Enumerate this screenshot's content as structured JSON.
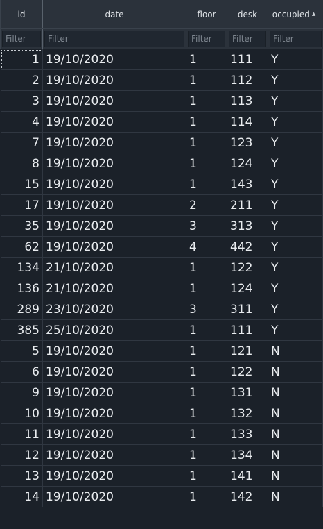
{
  "columns": [
    {
      "key": "id",
      "label": "id",
      "filter_placeholder": "Filter",
      "align": "num"
    },
    {
      "key": "date",
      "label": "date",
      "filter_placeholder": "Filter",
      "align": "txt"
    },
    {
      "key": "floor",
      "label": "floor",
      "filter_placeholder": "Filter",
      "align": "txt"
    },
    {
      "key": "desk",
      "label": "desk",
      "filter_placeholder": "Filter",
      "align": "txt"
    },
    {
      "key": "occupied",
      "label": "occupied",
      "filter_placeholder": "Filter",
      "align": "txt",
      "sort_indicator": "▲1"
    }
  ],
  "rows": [
    {
      "id": "1",
      "date": "19/10/2020",
      "floor": "1",
      "desk": "111",
      "occupied": "Y"
    },
    {
      "id": "2",
      "date": "19/10/2020",
      "floor": "1",
      "desk": "112",
      "occupied": "Y"
    },
    {
      "id": "3",
      "date": "19/10/2020",
      "floor": "1",
      "desk": "113",
      "occupied": "Y"
    },
    {
      "id": "4",
      "date": "19/10/2020",
      "floor": "1",
      "desk": "114",
      "occupied": "Y"
    },
    {
      "id": "7",
      "date": "19/10/2020",
      "floor": "1",
      "desk": "123",
      "occupied": "Y"
    },
    {
      "id": "8",
      "date": "19/10/2020",
      "floor": "1",
      "desk": "124",
      "occupied": "Y"
    },
    {
      "id": "15",
      "date": "19/10/2020",
      "floor": "1",
      "desk": "143",
      "occupied": "Y"
    },
    {
      "id": "17",
      "date": "19/10/2020",
      "floor": "2",
      "desk": "211",
      "occupied": "Y"
    },
    {
      "id": "35",
      "date": "19/10/2020",
      "floor": "3",
      "desk": "313",
      "occupied": "Y"
    },
    {
      "id": "62",
      "date": "19/10/2020",
      "floor": "4",
      "desk": "442",
      "occupied": "Y"
    },
    {
      "id": "134",
      "date": "21/10/2020",
      "floor": "1",
      "desk": "122",
      "occupied": "Y"
    },
    {
      "id": "136",
      "date": "21/10/2020",
      "floor": "1",
      "desk": "124",
      "occupied": "Y"
    },
    {
      "id": "289",
      "date": "23/10/2020",
      "floor": "3",
      "desk": "311",
      "occupied": "Y"
    },
    {
      "id": "385",
      "date": "25/10/2020",
      "floor": "1",
      "desk": "111",
      "occupied": "Y"
    },
    {
      "id": "5",
      "date": "19/10/2020",
      "floor": "1",
      "desk": "121",
      "occupied": "N"
    },
    {
      "id": "6",
      "date": "19/10/2020",
      "floor": "1",
      "desk": "122",
      "occupied": "N"
    },
    {
      "id": "9",
      "date": "19/10/2020",
      "floor": "1",
      "desk": "131",
      "occupied": "N"
    },
    {
      "id": "10",
      "date": "19/10/2020",
      "floor": "1",
      "desk": "132",
      "occupied": "N"
    },
    {
      "id": "11",
      "date": "19/10/2020",
      "floor": "1",
      "desk": "133",
      "occupied": "N"
    },
    {
      "id": "12",
      "date": "19/10/2020",
      "floor": "1",
      "desk": "134",
      "occupied": "N"
    },
    {
      "id": "13",
      "date": "19/10/2020",
      "floor": "1",
      "desk": "141",
      "occupied": "N"
    },
    {
      "id": "14",
      "date": "19/10/2020",
      "floor": "1",
      "desk": "142",
      "occupied": "N"
    }
  ],
  "selected_cell": {
    "row": 0,
    "column": "id"
  },
  "colors": {
    "background": "#1b2129",
    "header_background": "#2b323b",
    "grid_line": "#303741",
    "text": "#e9ecef"
  }
}
